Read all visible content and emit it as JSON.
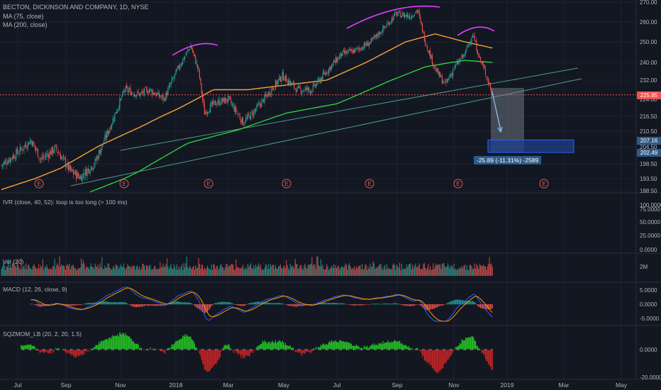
{
  "header": {
    "title": "BECTON, DICKINSON AND COMPANY, 1D, NYSE",
    "ma75": "MA (75, close)",
    "ma200": "MA (200, close)"
  },
  "panels": {
    "ivr": "IVR (close, 40, 52): loop is too long (> 100 ms)",
    "vol": "Vol (20)",
    "macd": "MACD (12, 26, close, 9)",
    "sqz": "SQZMOM_LB (20, 2, 20, 1.5)"
  },
  "measure_label": "-25.89 (-11.31%) -2589",
  "price_tags": {
    "last": "225.85",
    "target_top": "207.16",
    "target_bottom": "202.49"
  },
  "colors": {
    "bg": "#131722",
    "up": "#26a69a",
    "down": "#ef5350",
    "ma75": "#f7a339",
    "ma200": "#2ecc40",
    "arc": "#e040fb",
    "trend": "#4a9e8a",
    "grid": "#1e2230",
    "sqz_up": "#26d626",
    "sqz_down": "#d62626",
    "macd": "#2962ff",
    "signal": "#ff9800"
  },
  "earnings_marker": "E",
  "chart_data": {
    "type": "candlestick",
    "title": "BECTON, DICKINSON AND COMPANY, 1D, NYSE",
    "x_ticks": [
      "Jul",
      "Sep",
      "Nov",
      "2018",
      "Mar",
      "May",
      "Jul",
      "Sep",
      "Nov",
      "2019",
      "Mar",
      "May"
    ],
    "y_ticks": [
      "270.00",
      "260.00",
      "250.00",
      "240.00",
      "232.00",
      "224.00",
      "216.50",
      "210.50",
      "204.50",
      "198.50",
      "193.50",
      "188.50"
    ],
    "price_keypoints": [
      {
        "i": 0,
        "p": 198
      },
      {
        "i": 18,
        "p": 203
      },
      {
        "i": 30,
        "p": 207
      },
      {
        "i": 40,
        "p": 200
      },
      {
        "i": 55,
        "p": 204
      },
      {
        "i": 70,
        "p": 196
      },
      {
        "i": 80,
        "p": 194
      },
      {
        "i": 95,
        "p": 199
      },
      {
        "i": 110,
        "p": 212
      },
      {
        "i": 125,
        "p": 228
      },
      {
        "i": 140,
        "p": 226
      },
      {
        "i": 150,
        "p": 228
      },
      {
        "i": 165,
        "p": 224
      },
      {
        "i": 180,
        "p": 238
      },
      {
        "i": 192,
        "p": 248
      },
      {
        "i": 200,
        "p": 236
      },
      {
        "i": 206,
        "p": 218
      },
      {
        "i": 215,
        "p": 222
      },
      {
        "i": 230,
        "p": 224
      },
      {
        "i": 245,
        "p": 214
      },
      {
        "i": 255,
        "p": 218
      },
      {
        "i": 270,
        "p": 226
      },
      {
        "i": 285,
        "p": 234
      },
      {
        "i": 300,
        "p": 228
      },
      {
        "i": 315,
        "p": 228
      },
      {
        "i": 330,
        "p": 236
      },
      {
        "i": 345,
        "p": 244
      },
      {
        "i": 360,
        "p": 246
      },
      {
        "i": 375,
        "p": 250
      },
      {
        "i": 390,
        "p": 258
      },
      {
        "i": 400,
        "p": 264
      },
      {
        "i": 415,
        "p": 263
      },
      {
        "i": 422,
        "p": 266
      },
      {
        "i": 430,
        "p": 250
      },
      {
        "i": 440,
        "p": 237
      },
      {
        "i": 450,
        "p": 230
      },
      {
        "i": 460,
        "p": 238
      },
      {
        "i": 470,
        "p": 244
      },
      {
        "i": 478,
        "p": 254
      },
      {
        "i": 485,
        "p": 242
      },
      {
        "i": 492,
        "p": 234
      },
      {
        "i": 498,
        "p": 226
      }
    ],
    "ma75_keypoints": [
      {
        "i": 0,
        "p": 189
      },
      {
        "i": 60,
        "p": 197
      },
      {
        "i": 100,
        "p": 205
      },
      {
        "i": 140,
        "p": 212
      },
      {
        "i": 180,
        "p": 220
      },
      {
        "i": 215,
        "p": 228
      },
      {
        "i": 250,
        "p": 228
      },
      {
        "i": 290,
        "p": 230
      },
      {
        "i": 330,
        "p": 232
      },
      {
        "i": 370,
        "p": 240
      },
      {
        "i": 410,
        "p": 250
      },
      {
        "i": 440,
        "p": 254
      },
      {
        "i": 470,
        "p": 250
      },
      {
        "i": 498,
        "p": 247
      }
    ],
    "ma200_keypoints": [
      {
        "i": 90,
        "p": 188
      },
      {
        "i": 140,
        "p": 196
      },
      {
        "i": 190,
        "p": 206
      },
      {
        "i": 240,
        "p": 211
      },
      {
        "i": 290,
        "p": 218
      },
      {
        "i": 340,
        "p": 222
      },
      {
        "i": 390,
        "p": 231
      },
      {
        "i": 430,
        "p": 238
      },
      {
        "i": 470,
        "p": 241
      },
      {
        "i": 498,
        "p": 240
      }
    ],
    "annotations": {
      "last_price": 225.85,
      "target_top": 207.16,
      "target_bottom": 202.49,
      "change": -25.89,
      "change_pct": -11.31
    },
    "ivr_ticks": [
      "100.0000",
      "75.0000",
      "50.0000",
      "25.0000",
      "0.0000"
    ],
    "vol_ticks": [
      "2M"
    ],
    "macd_ticks": [
      "5.0000",
      "0.0000",
      "-5.0000"
    ],
    "sqz_ticks": [
      "0.0000",
      "-20.0000"
    ]
  }
}
